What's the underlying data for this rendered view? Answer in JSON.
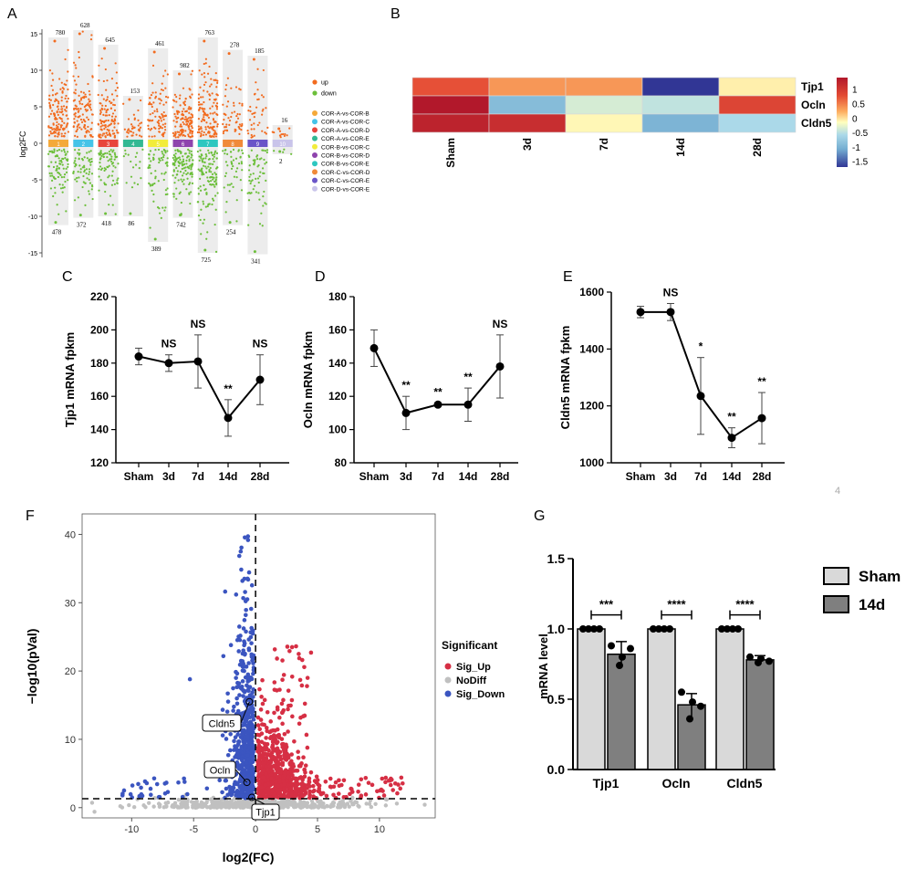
{
  "panel_letters": [
    "A",
    "B",
    "C",
    "D",
    "E",
    "F",
    "G"
  ],
  "stray_digit": "4",
  "chart_data": [
    {
      "panel": "A",
      "type": "scatter",
      "ylabel": "log2FC",
      "ylim": [
        -16,
        16
      ],
      "yticks": [
        15,
        10,
        5,
        0,
        -5,
        -10,
        -15
      ],
      "groups": [
        {
          "name": "COR-A-vs-COR-B",
          "label": "1",
          "color": "#f4a93a",
          "up": 780,
          "down": 478,
          "max": 14.5,
          "min": -11.2
        },
        {
          "name": "COR-A-vs-COR-C",
          "label": "2",
          "color": "#45c3e8",
          "up": 628,
          "down": 372,
          "max": 15.5,
          "min": -10.2
        },
        {
          "name": "COR-A-vs-COR-D",
          "label": "3",
          "color": "#e8453c",
          "up": 645,
          "down": 418,
          "max": 13.5,
          "min": -10.0
        },
        {
          "name": "COR-A-vs-COR-E",
          "label": "4",
          "color": "#32b893",
          "up": 153,
          "down": 86,
          "max": 6.5,
          "min": -10.0
        },
        {
          "name": "COR-B-vs-COR-C",
          "label": "5",
          "color": "#f2ec3b",
          "up": 461,
          "down": 389,
          "max": 13.0,
          "min": -13.5
        },
        {
          "name": "COR-B-vs-COR-D",
          "label": "6",
          "color": "#8e44ad",
          "up": 982,
          "down": 742,
          "max": 10.0,
          "min": -10.2
        },
        {
          "name": "COR-B-vs-COR-E",
          "label": "7",
          "color": "#2ec7c0",
          "up": 763,
          "down": 725,
          "max": 14.5,
          "min": -15.0
        },
        {
          "name": "COR-C-vs-COR-D",
          "label": "8",
          "color": "#f08a3a",
          "up": 278,
          "down": 254,
          "max": 12.8,
          "min": -11.2
        },
        {
          "name": "COR-C-vs-COR-E",
          "label": "9",
          "color": "#6a55c8",
          "up": 185,
          "down": 341,
          "max": 12.0,
          "min": -15.2
        },
        {
          "name": "COR-D-vs-COR-E",
          "label": "10",
          "color": "#c9c4ea",
          "up": 16,
          "down": 2,
          "max": 2.5,
          "min": -1.5
        }
      ],
      "legend": [
        {
          "name": "up",
          "color": "#f26b1f"
        },
        {
          "name": "down",
          "color": "#6cbf3a"
        }
      ]
    },
    {
      "panel": "B",
      "type": "heatmap",
      "rows": [
        "Tjp1",
        "Ocln",
        "Cldn5"
      ],
      "columns": [
        "Sham",
        "3d",
        "7d",
        "14d",
        "28d"
      ],
      "values": [
        [
          0.9,
          0.6,
          0.6,
          -1.7,
          0.1
        ],
        [
          1.4,
          -0.8,
          -0.2,
          -0.3,
          1.0
        ],
        [
          1.3,
          1.2,
          0.05,
          -0.9,
          -0.4
        ]
      ],
      "colorbar_ticks": [
        "1",
        "0.5",
        "0",
        "-0.5",
        "-1",
        "-1.5"
      ],
      "colorbar_range": [
        -1.7,
        1.4
      ]
    },
    {
      "panel": "C",
      "type": "line",
      "ylabel": "Tjp1 mRNA fpkm",
      "categories": [
        "Sham",
        "3d",
        "7d",
        "14d",
        "28d"
      ],
      "values": [
        184,
        180,
        181,
        147,
        170
      ],
      "errors": [
        5,
        5,
        16,
        11,
        15
      ],
      "labels": [
        "",
        "NS",
        "NS",
        "**",
        "NS"
      ],
      "ylim": [
        120,
        220
      ],
      "yticks": [
        "120",
        "140",
        "160",
        "180",
        "200",
        "220"
      ]
    },
    {
      "panel": "D",
      "type": "line",
      "ylabel": "Ocln mRNA fpkm",
      "categories": [
        "Sham",
        "3d",
        "7d",
        "14d",
        "28d"
      ],
      "values": [
        149,
        110,
        115,
        115,
        138
      ],
      "errors": [
        11,
        10,
        1,
        10,
        19
      ],
      "labels": [
        "",
        "**",
        "**",
        "**",
        "NS"
      ],
      "ylim": [
        80,
        180
      ],
      "yticks": [
        "80",
        "100",
        "120",
        "140",
        "160",
        "180"
      ]
    },
    {
      "panel": "E",
      "type": "line",
      "ylabel": "Cldn5 mRNA fpkm",
      "categories": [
        "Sham",
        "3d",
        "7d",
        "14d",
        "28d"
      ],
      "values": [
        1530,
        1530,
        1235,
        1088,
        1157
      ],
      "errors": [
        20,
        30,
        135,
        35,
        90
      ],
      "labels": [
        "",
        "NS",
        "*",
        "**",
        "**"
      ],
      "ylim": [
        1000,
        1600
      ],
      "yticks": [
        "1000",
        "1200",
        "1400",
        "1600"
      ]
    },
    {
      "panel": "F",
      "type": "scatter",
      "xlabel": "log2(FC)",
      "ylabel": "−log10(pVal)",
      "xlim": [
        -14,
        14.5
      ],
      "ylim": [
        -1.5,
        43
      ],
      "xticks": [
        "-10",
        "-5",
        "0",
        "5",
        "10"
      ],
      "yticks": [
        "0",
        "10",
        "20",
        "30",
        "40"
      ],
      "threshold_y": 1.3,
      "threshold_x": 0,
      "legend_title": "Significant",
      "legend": [
        {
          "name": "Sig_Up",
          "color": "#d62f44"
        },
        {
          "name": "NoDiff",
          "color": "#c0c0c0"
        },
        {
          "name": "Sig_Down",
          "color": "#3b55c0"
        }
      ],
      "annotations": [
        {
          "label": "Cldn5",
          "x": -0.5,
          "y": 15.5
        },
        {
          "label": "Ocln",
          "x": -0.7,
          "y": 3.7
        },
        {
          "label": "Tjp1",
          "x": -0.3,
          "y": 1.5
        }
      ]
    },
    {
      "panel": "G",
      "type": "bar",
      "ylabel": "mRNA level",
      "categories": [
        "Tjp1",
        "Ocln",
        "Cldn5"
      ],
      "ylim": [
        0,
        1.5
      ],
      "yticks": [
        "0.0",
        "0.5",
        "1.0",
        "1.5"
      ],
      "series": [
        {
          "name": "Sham",
          "color": "#d9d9d9",
          "values": [
            1.0,
            1.0,
            1.0
          ],
          "errors": [
            0,
            0,
            0
          ],
          "points": [
            [
              1,
              1,
              1,
              1
            ],
            [
              1,
              1,
              1,
              1
            ],
            [
              1,
              1,
              1,
              1
            ]
          ]
        },
        {
          "name": "14d",
          "color": "#7f7f7f",
          "values": [
            0.82,
            0.46,
            0.78
          ],
          "errors": [
            0.09,
            0.08,
            0.03
          ],
          "points": [
            [
              0.88,
              0.74,
              0.8,
              0.86
            ],
            [
              0.55,
              0.36,
              0.48,
              0.45
            ],
            [
              0.8,
              0.76,
              0.79,
              0.77
            ]
          ]
        }
      ],
      "significance": [
        "***",
        "****",
        "****"
      ]
    }
  ]
}
